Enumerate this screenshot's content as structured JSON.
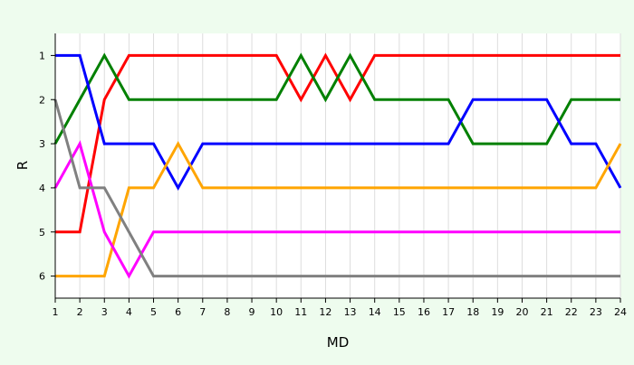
{
  "chart_data": {
    "type": "line",
    "title": "",
    "xlabel": "MD",
    "ylabel": "R",
    "x": [
      1,
      2,
      3,
      4,
      5,
      6,
      7,
      8,
      9,
      10,
      11,
      12,
      13,
      14,
      15,
      16,
      17,
      18,
      19,
      20,
      21,
      22,
      23,
      24
    ],
    "xlim": [
      1,
      24
    ],
    "ylim": [
      0.5,
      6.5
    ],
    "y_reversed": true,
    "yticks": [
      1,
      2,
      3,
      4,
      5,
      6
    ],
    "grid": "vertical",
    "legend": "none",
    "colors": {
      "background": "#eefcee",
      "plot_background": "#ffffff",
      "grid": "#dddddd"
    },
    "series": [
      {
        "color": "#ff0000",
        "values": [
          5,
          5,
          2,
          1,
          1,
          1,
          1,
          1,
          1,
          1,
          2,
          1,
          2,
          1,
          1,
          1,
          1,
          1,
          1,
          1,
          1,
          1,
          1,
          1
        ]
      },
      {
        "color": "#008000",
        "values": [
          3,
          2,
          1,
          2,
          2,
          2,
          2,
          2,
          2,
          2,
          1,
          2,
          1,
          2,
          2,
          2,
          2,
          3,
          3,
          3,
          3,
          2,
          2,
          2
        ]
      },
      {
        "color": "#0000ff",
        "values": [
          1,
          1,
          3,
          3,
          3,
          4,
          3,
          3,
          3,
          3,
          3,
          3,
          3,
          3,
          3,
          3,
          3,
          2,
          2,
          2,
          2,
          3,
          3,
          4
        ]
      },
      {
        "color": "#ffa500",
        "values": [
          6,
          6,
          6,
          4,
          4,
          3,
          4,
          4,
          4,
          4,
          4,
          4,
          4,
          4,
          4,
          4,
          4,
          4,
          4,
          4,
          4,
          4,
          4,
          3
        ]
      },
      {
        "color": "#ff00ff",
        "values": [
          4,
          3,
          5,
          6,
          5,
          5,
          5,
          5,
          5,
          5,
          5,
          5,
          5,
          5,
          5,
          5,
          5,
          5,
          5,
          5,
          5,
          5,
          5,
          5
        ]
      },
      {
        "color": "#808080",
        "values": [
          2,
          4,
          4,
          5,
          6,
          6,
          6,
          6,
          6,
          6,
          6,
          6,
          6,
          6,
          6,
          6,
          6,
          6,
          6,
          6,
          6,
          6,
          6,
          6
        ]
      }
    ]
  }
}
